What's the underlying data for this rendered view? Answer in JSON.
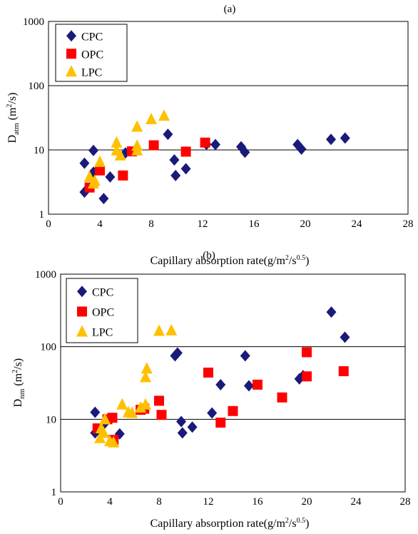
{
  "chart_data": [
    {
      "type": "scatter",
      "panel_label": "(a)",
      "y_label_main": "D",
      "y_label_sub": "atm",
      "y_label_unit": "(m",
      "y_label_unit_sup": "2",
      "y_label_unit_end": "/s)",
      "x_label_main": "Capillary absorption rate(g/m",
      "x_label_sup1": "2",
      "x_label_mid": "/s",
      "x_label_sup2": "0.5",
      "x_label_end": ")",
      "xlim": [
        0,
        28
      ],
      "ylim": [
        1,
        1000
      ],
      "y_scale": "log",
      "x_ticks": [
        "0",
        "4",
        "8",
        "12",
        "16",
        "20",
        "24",
        "28"
      ],
      "y_ticks": [
        "1",
        "10",
        "100",
        "1000"
      ],
      "legend_position": "top-left",
      "series": [
        {
          "name": "CPC",
          "color": "#1a1a7a",
          "marker": "diamond",
          "points": [
            [
              2.8,
              6.2
            ],
            [
              2.8,
              2.2
            ],
            [
              3.5,
              9.8
            ],
            [
              3.5,
              4.5
            ],
            [
              4.3,
              1.75
            ],
            [
              4.8,
              3.8
            ],
            [
              6.0,
              9.0
            ],
            [
              9.3,
              17.5
            ],
            [
              9.8,
              7.0
            ],
            [
              9.9,
              4.0
            ],
            [
              10.7,
              5.1
            ],
            [
              12.3,
              12.2
            ],
            [
              13.0,
              12.1
            ],
            [
              15.0,
              11.2
            ],
            [
              15.3,
              9.2
            ],
            [
              19.4,
              12.1
            ],
            [
              19.7,
              10.3
            ],
            [
              22.0,
              14.6
            ],
            [
              23.1,
              15.3
            ]
          ]
        },
        {
          "name": "OPC",
          "color": "#ff0000",
          "marker": "square",
          "points": [
            [
              3.2,
              2.6
            ],
            [
              4.0,
              4.8
            ],
            [
              5.8,
              4.0
            ],
            [
              6.5,
              9.5
            ],
            [
              8.2,
              11.8
            ],
            [
              10.7,
              9.4
            ],
            [
              12.2,
              13.0
            ]
          ]
        },
        {
          "name": "LPC",
          "color": "#ffc000",
          "marker": "triangle",
          "points": [
            [
              3.2,
              3.8
            ],
            [
              3.5,
              3.0
            ],
            [
              3.6,
              3.3
            ],
            [
              4.0,
              6.5
            ],
            [
              5.3,
              13.0
            ],
            [
              5.3,
              9.8
            ],
            [
              5.6,
              8.2
            ],
            [
              6.9,
              23.0
            ],
            [
              6.9,
              11.6
            ],
            [
              6.9,
              9.8
            ],
            [
              8.0,
              30.0
            ],
            [
              9.0,
              34.0
            ]
          ]
        }
      ]
    },
    {
      "type": "scatter",
      "panel_label": "(b)",
      "y_label_main": "D",
      "y_label_sub": "nm",
      "y_label_unit": "(m",
      "y_label_unit_sup": "2",
      "y_label_unit_end": "/s)",
      "x_label_main": "Capillary absorption rate(g/m",
      "x_label_sup1": "2",
      "x_label_mid": "/s",
      "x_label_sup2": "0.5",
      "x_label_end": ")",
      "xlim": [
        0,
        28
      ],
      "ylim": [
        1,
        1000
      ],
      "y_scale": "log",
      "x_ticks": [
        "0",
        "4",
        "8",
        "12",
        "16",
        "20",
        "24",
        "28"
      ],
      "y_ticks": [
        "1",
        "10",
        "100",
        "1000"
      ],
      "legend_position": "top-left",
      "series": [
        {
          "name": "CPC",
          "color": "#1a1a7a",
          "marker": "diamond",
          "points": [
            [
              2.8,
              12.5
            ],
            [
              2.8,
              6.5
            ],
            [
              3.5,
              8.5
            ],
            [
              4.8,
              6.3
            ],
            [
              9.3,
              75
            ],
            [
              9.5,
              82
            ],
            [
              9.8,
              9.3
            ],
            [
              9.9,
              6.5
            ],
            [
              10.7,
              7.8
            ],
            [
              12.3,
              12.2
            ],
            [
              13.0,
              30
            ],
            [
              15.0,
              75
            ],
            [
              15.3,
              29
            ],
            [
              19.4,
              36
            ],
            [
              19.7,
              40
            ],
            [
              22.0,
              300
            ],
            [
              23.1,
              135
            ]
          ]
        },
        {
          "name": "OPC",
          "color": "#ff0000",
          "marker": "square",
          "points": [
            [
              3.0,
              7.5
            ],
            [
              3.8,
              10.0
            ],
            [
              4.2,
              10.5
            ],
            [
              4.3,
              5.2
            ],
            [
              6.5,
              13.5
            ],
            [
              6.8,
              14.0
            ],
            [
              8.0,
              18.0
            ],
            [
              8.2,
              11.5
            ],
            [
              12.0,
              44
            ],
            [
              13.0,
              9.0
            ],
            [
              14.0,
              13.0
            ],
            [
              16.0,
              30.0
            ],
            [
              18.0,
              20.0
            ],
            [
              20.0,
              39.0
            ],
            [
              20.0,
              84.0
            ],
            [
              23.0,
              46.0
            ]
          ]
        },
        {
          "name": "LPC",
          "color": "#ffc000",
          "marker": "triangle",
          "points": [
            [
              3.2,
              5.5
            ],
            [
              3.3,
              7.5
            ],
            [
              3.5,
              6.5
            ],
            [
              3.6,
              10.0
            ],
            [
              4.0,
              5.0
            ],
            [
              4.3,
              4.8
            ],
            [
              5.0,
              16.0
            ],
            [
              5.5,
              12.5
            ],
            [
              5.8,
              12.2
            ],
            [
              6.5,
              14.5
            ],
            [
              6.9,
              16.0
            ],
            [
              6.9,
              38.0
            ],
            [
              7.0,
              50.0
            ],
            [
              8.0,
              165.0
            ],
            [
              9.0,
              168.0
            ]
          ]
        }
      ]
    }
  ]
}
